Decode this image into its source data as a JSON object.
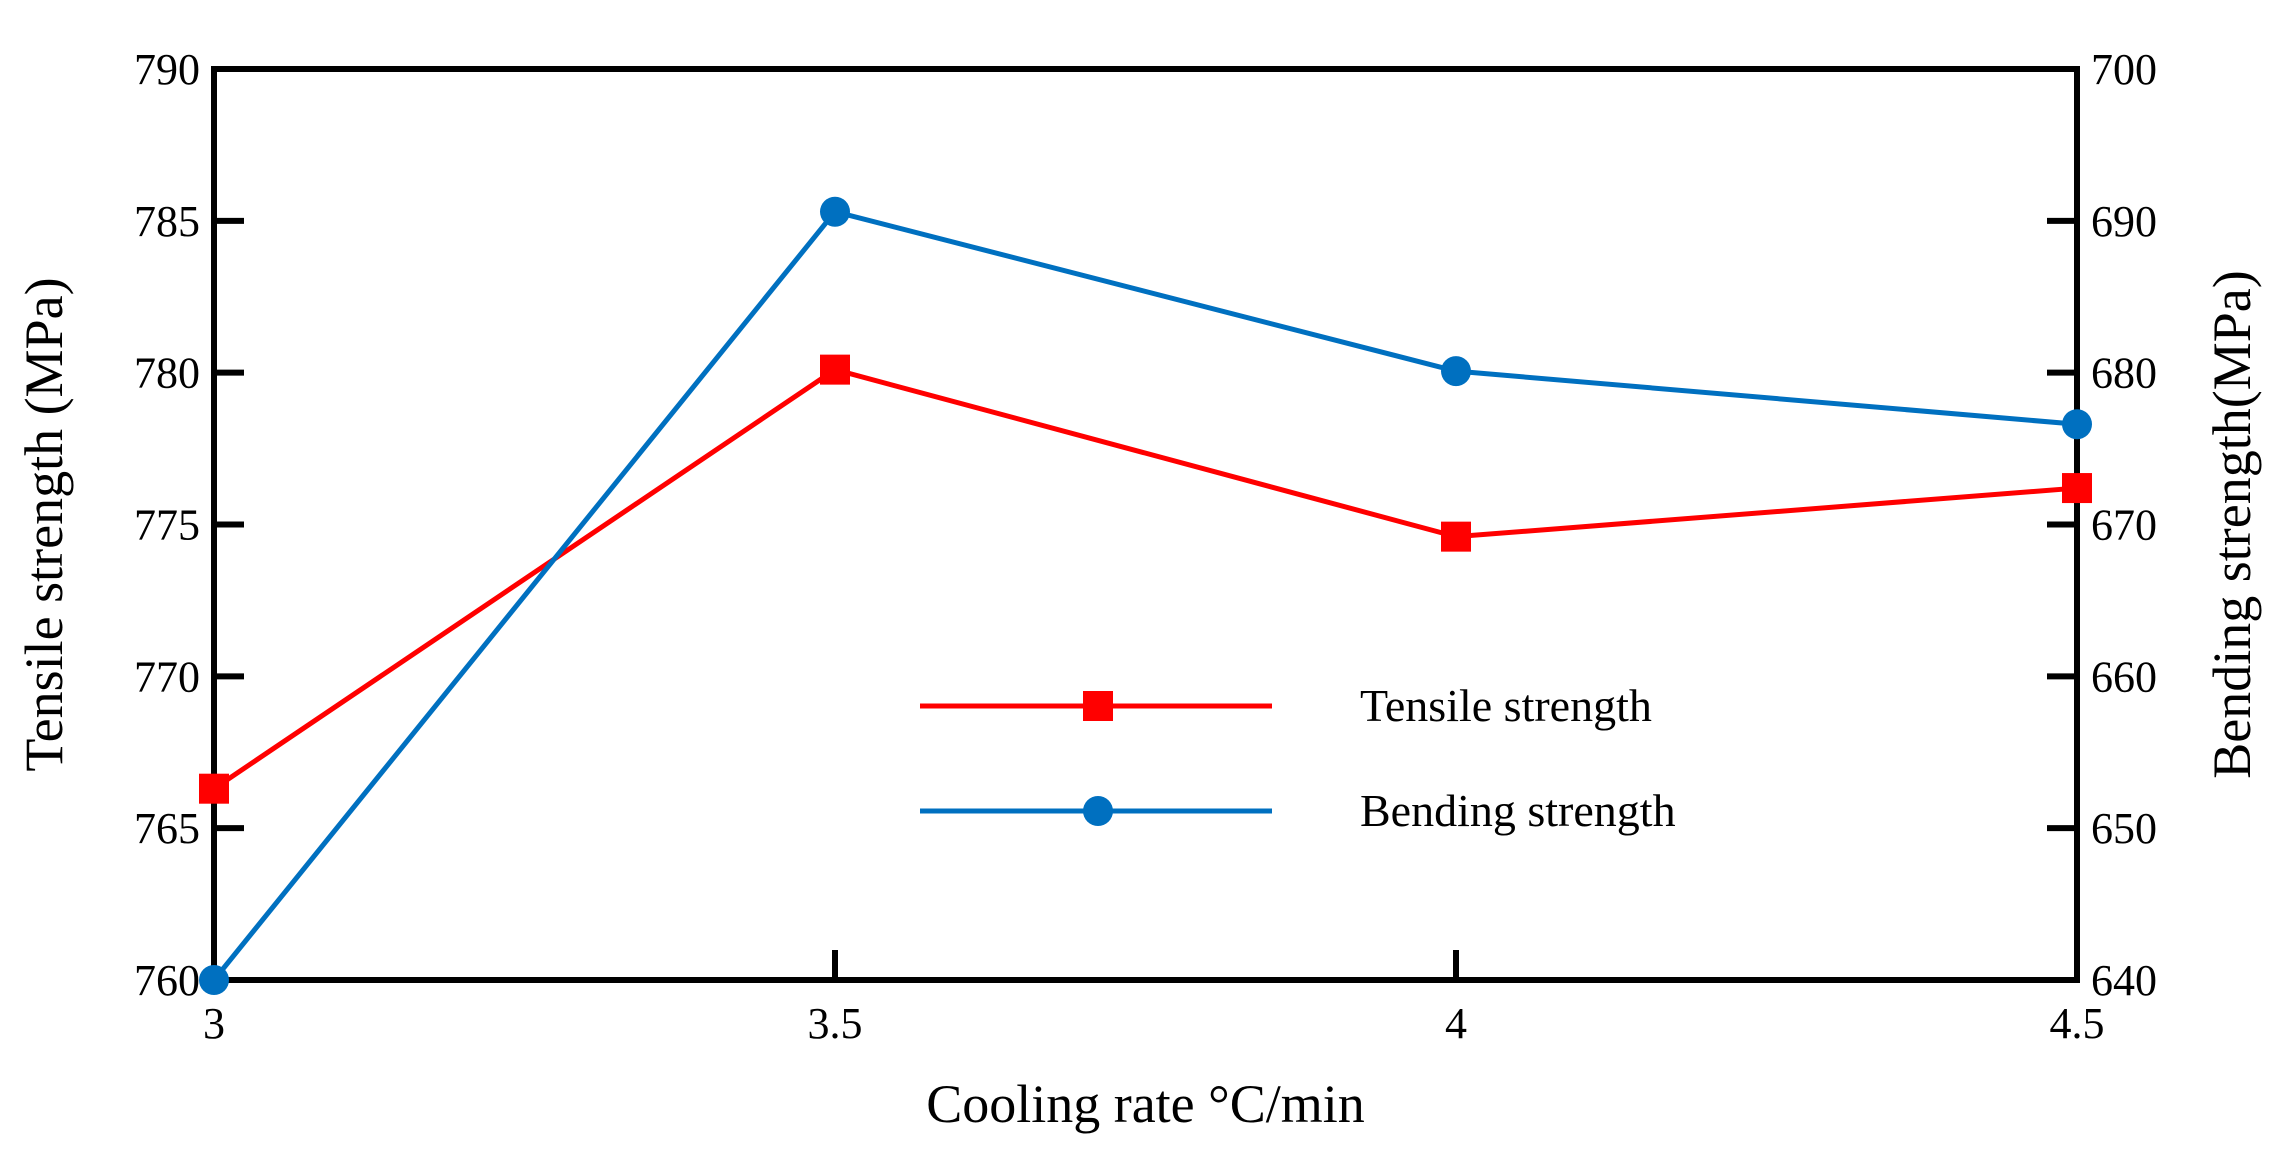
{
  "chart_data": {
    "type": "line",
    "title": "",
    "xlabel": "Cooling rate °C/min",
    "ylabel": "Tensile strength (MPa)",
    "y2label": "Bending strength(MPa)",
    "x": [
      3,
      3.5,
      4,
      4.5
    ],
    "x_tick_labels": [
      "3",
      "3.5",
      "4",
      "4.5"
    ],
    "xlim": [
      3,
      4.5
    ],
    "ylim": [
      760,
      790
    ],
    "y_ticks": [
      760,
      765,
      770,
      775,
      780,
      785,
      790
    ],
    "y2lim": [
      640,
      700
    ],
    "y2_ticks": [
      640,
      650,
      660,
      670,
      680,
      690,
      700
    ],
    "grid": false,
    "legend_position": "center-bottom",
    "series": [
      {
        "name": "Tensile strength",
        "axis": "left",
        "values": [
          766.3,
          780.1,
          774.6,
          776.2
        ],
        "color": "#ff0000",
        "marker": "square"
      },
      {
        "name": "Bending strength",
        "axis": "right",
        "values": [
          640,
          690.6,
          680.1,
          676.6
        ],
        "color": "#0070c0",
        "marker": "circle"
      }
    ]
  }
}
